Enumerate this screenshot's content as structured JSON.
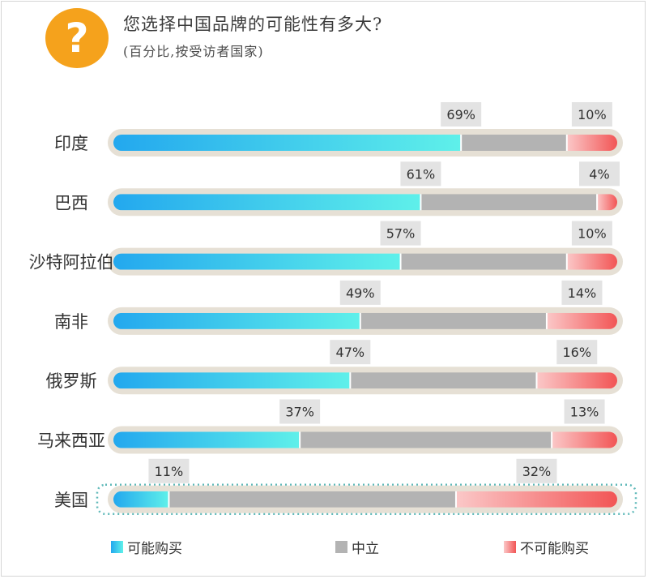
{
  "header": {
    "icon": "question-mark-icon",
    "icon_glyph": "?",
    "title": "您选择中国品牌的可能性有多大?",
    "subtitle": "(百分比,按受访者国家)"
  },
  "colors": {
    "likely_start": "#23a8ee",
    "likely_end": "#5ff0ea",
    "neutral": "#b3b3b3",
    "unlikely_start": "#fbc8c8",
    "unlikely_end": "#f25555",
    "track": "#e6e0d5",
    "label_box": "#e3e3e3",
    "highlight_border": "#5fb9b9"
  },
  "chart_data": {
    "type": "bar",
    "stacked": true,
    "orientation": "horizontal",
    "title": "您选择中国品牌的可能性有多大?",
    "subtitle": "(百分比,按受访者国家)",
    "categories": [
      "印度",
      "巴西",
      "沙特阿拉伯",
      "南非",
      "俄罗斯",
      "马来西亚",
      "美国"
    ],
    "series": [
      {
        "name": "可能购买",
        "values": [
          69,
          61,
          57,
          49,
          47,
          37,
          11
        ]
      },
      {
        "name": "中立",
        "values": [
          21,
          35,
          33,
          37,
          37,
          50,
          57
        ]
      },
      {
        "name": "不可能购买",
        "values": [
          10,
          4,
          10,
          14,
          16,
          13,
          32
        ]
      }
    ],
    "labels": {
      "likely": [
        "69%",
        "61%",
        "57%",
        "49%",
        "47%",
        "37%",
        "11%"
      ],
      "unlikely": [
        "10%",
        "4%",
        "10%",
        "14%",
        "16%",
        "13%",
        "32%"
      ]
    },
    "highlighted_category": "美国",
    "xlim": [
      0,
      100
    ],
    "legend_position": "bottom"
  },
  "legend": {
    "likely": "可能购买",
    "neutral": "中立",
    "unlikely": "不可能购买"
  }
}
